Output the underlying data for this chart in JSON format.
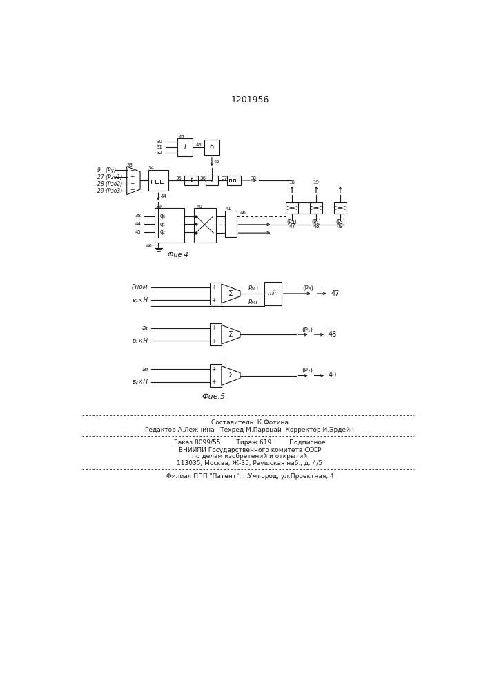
{
  "title": "1201956",
  "line_color": "#1a1a1a",
  "footer_lines": [
    "Составитель  К.Фотина",
    "Редактор А.Лежнина   Техред М.Пароцай  Корректор И.Эрдейн",
    "Заказ 8099/55        Тираж 619         Подписное",
    "ВНИИПИ Государственного комитета СССР",
    "по делам изобретений и открытий",
    "113035, Москва, Ж-35, Раушская наб., д. 4/5",
    "Филиал ППП \"Патент\", г.Ужгород, ул.Проектная, 4"
  ]
}
